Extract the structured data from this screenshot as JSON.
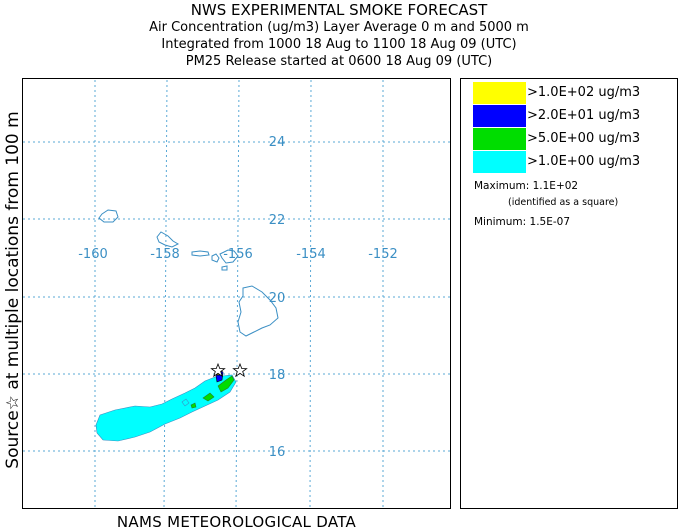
{
  "header": {
    "title": "NWS EXPERIMENTAL SMOKE FORECAST",
    "line1": "Air Concentration (ug/m3) Layer Average    0 m and  5000 m",
    "line2": "Integrated from 1000 18 Aug to 1100 18 Aug 09 (UTC)",
    "line3": "PM25 Release started at 0600 18 Aug 09 (UTC)"
  },
  "side_label": "Source☆ at multiple locations  from  100 m",
  "bottom_label": "NAMS METEOROLOGICAL DATA",
  "map": {
    "lon_labels": [
      "-160",
      "-158",
      "-156",
      "-154",
      "-152"
    ],
    "lat_labels": [
      "24",
      "22",
      "20",
      "18",
      "16"
    ],
    "grid_color": "#5aa9d6",
    "coast_color": "#3b8fc4",
    "source_markers": [
      {
        "lon": -156.5,
        "lat": 18.1
      },
      {
        "lon": -155.9,
        "lat": 18.1
      }
    ]
  },
  "legend": {
    "items": [
      {
        "label": ">1.0E+02 ug/m3",
        "color": "#ffff00"
      },
      {
        "label": ">2.0E+01 ug/m3",
        "color": "#0000ff"
      },
      {
        "label": ">5.0E+00 ug/m3",
        "color": "#00dd00"
      },
      {
        "label": ">1.0E+00 ug/m3",
        "color": "#00ffff"
      }
    ],
    "maximum": "Maximum: 1.1E+02",
    "maximum_note": "(identified as a square)",
    "minimum": "Minimum: 1.5E-07"
  }
}
